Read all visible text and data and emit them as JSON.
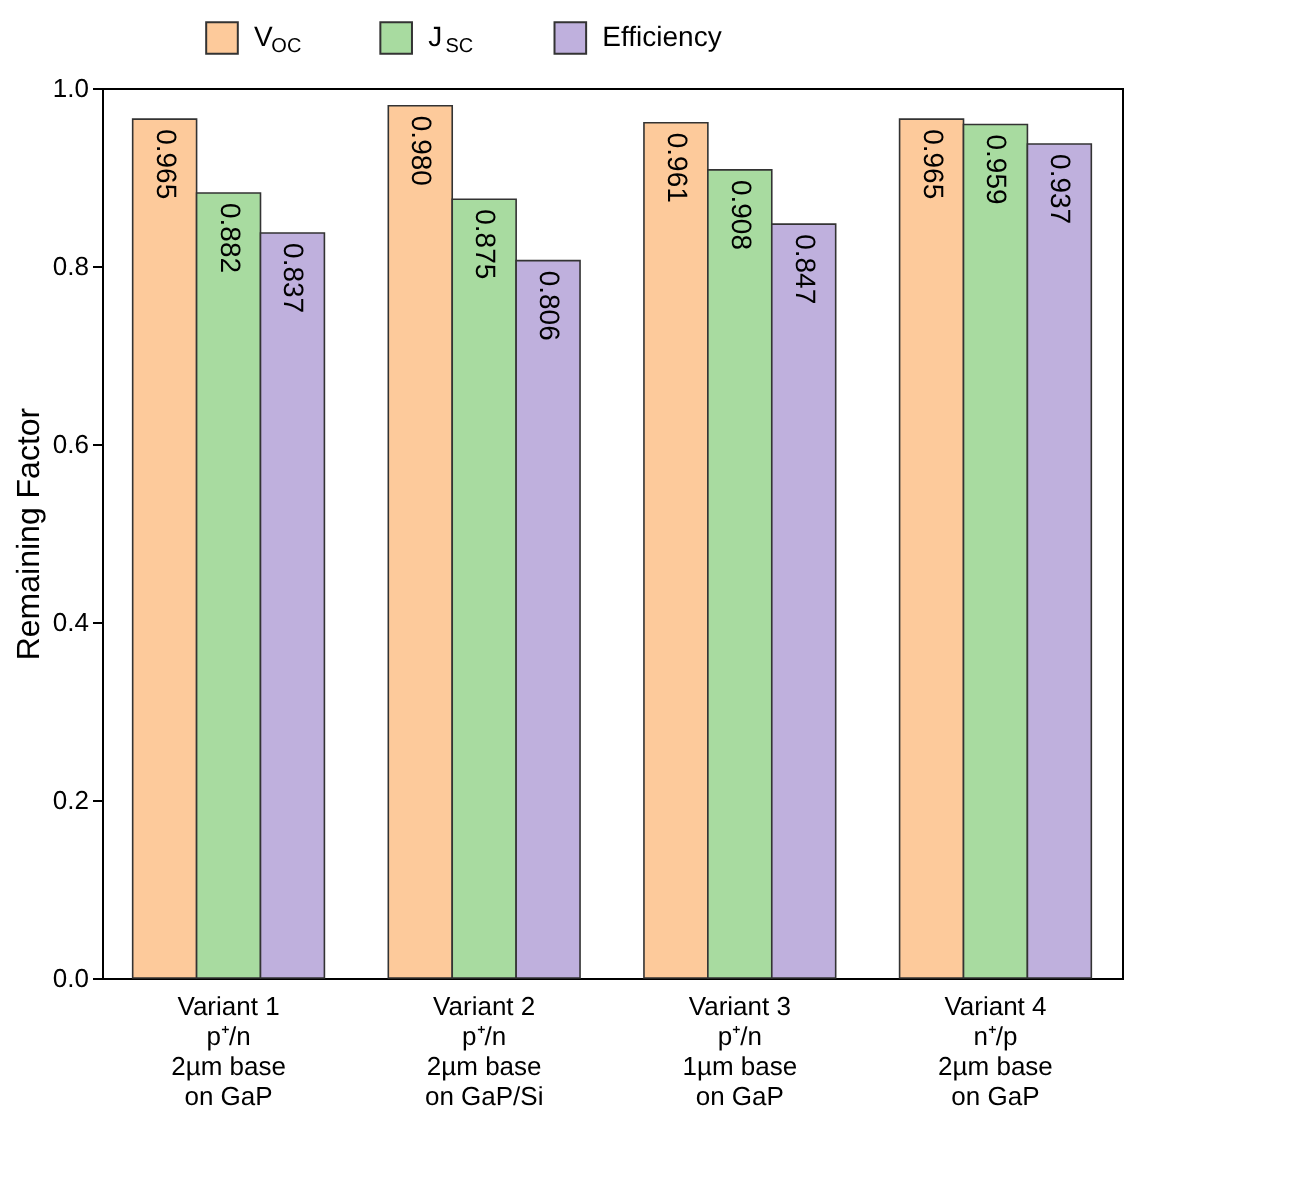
{
  "chart_data": {
    "type": "bar",
    "ylabel": "Remaining Factor",
    "categories": [
      "Variant 1\np⁺/n\n2µm base\non GaP",
      "Variant 2\np⁺/n\n2µm base\non GaP/Si",
      "Variant 3\np⁺/n\n1µm base\non GaP",
      "Variant 4\nn⁺/p\n2µm base\non GaP"
    ],
    "series": [
      {
        "name": "V$_{OC}$",
        "color": "#fdca9b",
        "values": [
          0.965,
          0.98,
          0.961,
          0.965
        ],
        "value_labels": [
          "0.965",
          "0.980",
          "0.961",
          "0.965"
        ]
      },
      {
        "name": "J$_{SC}$",
        "color": "#a8dba0",
        "values": [
          0.882,
          0.875,
          0.908,
          0.959
        ],
        "value_labels": [
          "0.882",
          "0.875",
          "0.908",
          "0.959"
        ]
      },
      {
        "name": "Efficiency",
        "color": "#bfb0dd",
        "values": [
          0.837,
          0.806,
          0.847,
          0.937
        ],
        "value_labels": [
          "0.837",
          "0.806",
          "0.847",
          "0.937"
        ]
      }
    ],
    "ylim": [
      0,
      1.0
    ],
    "yticks": [
      {
        "value": 0,
        "label": "0.0"
      },
      0.2,
      0.4,
      0.6,
      0.8,
      {
        "value": 1.0,
        "label": "1.0"
      }
    ],
    "legend": "top",
    "grid": false
  }
}
